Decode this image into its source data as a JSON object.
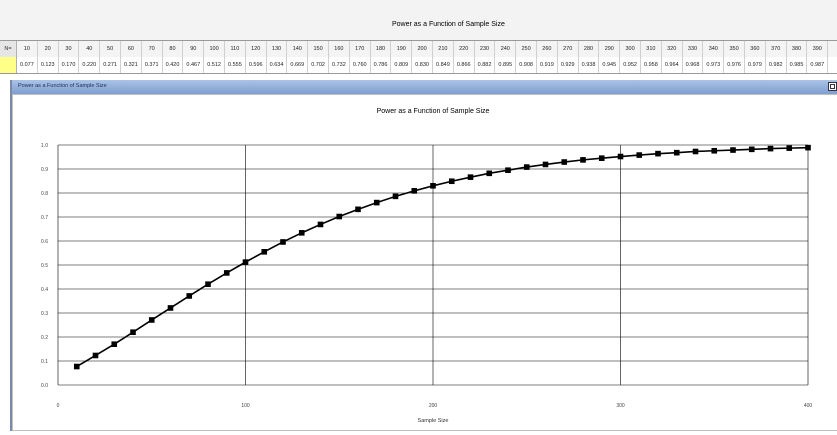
{
  "app": {
    "top_title": "Power as a Function of Sample Size",
    "window_title": "Power as a Function of Sample Size"
  },
  "table": {
    "n_label": "N=",
    "n_values": [
      "10",
      "20",
      "30",
      "40",
      "50",
      "60",
      "70",
      "80",
      "90",
      "100",
      "110",
      "120",
      "130",
      "140",
      "150",
      "160",
      "170",
      "180",
      "190",
      "200",
      "210",
      "220",
      "230",
      "240",
      "250",
      "260",
      "270",
      "280",
      "290",
      "300",
      "310",
      "320",
      "330",
      "340",
      "350",
      "360",
      "370",
      "380",
      "390"
    ],
    "power_values": [
      "0.077",
      "0.123",
      "0.170",
      "0.220",
      "0.271",
      "0.321",
      "0.371",
      "0.420",
      "0.467",
      "0.512",
      "0.555",
      "0.596",
      "0.634",
      "0.669",
      "0.702",
      "0.732",
      "0.760",
      "0.786",
      "0.809",
      "0.830",
      "0.849",
      "0.866",
      "0.882",
      "0.895",
      "0.908",
      "0.919",
      "0.929",
      "0.938",
      "0.945",
      "0.952",
      "0.958",
      "0.964",
      "0.968",
      "0.973",
      "0.976",
      "0.979",
      "0.982",
      "0.985",
      "0.987"
    ]
  },
  "chart_data": {
    "type": "line",
    "title": "Power as a Function of Sample Size",
    "xlabel": "Sample Size",
    "ylabel": "",
    "xlim": [
      0,
      400
    ],
    "ylim": [
      0,
      1.0
    ],
    "xticks": [
      "0",
      "100",
      "200",
      "300",
      "400"
    ],
    "yticks": [
      "0.0",
      "0.1",
      "0.2",
      "0.3",
      "0.4",
      "0.5",
      "0.6",
      "0.7",
      "0.8",
      "0.9",
      "1.0"
    ],
    "grid": true,
    "series": [
      {
        "color": "#000000",
        "x": [
          10,
          20,
          30,
          40,
          50,
          60,
          70,
          80,
          90,
          100,
          110,
          120,
          130,
          140,
          150,
          160,
          170,
          180,
          190,
          200,
          210,
          220,
          230,
          240,
          250,
          260,
          270,
          280,
          290,
          300,
          310,
          320,
          330,
          340,
          350,
          360,
          370,
          380,
          390,
          400
        ],
        "y": [
          0.077,
          0.123,
          0.17,
          0.22,
          0.271,
          0.321,
          0.371,
          0.42,
          0.467,
          0.512,
          0.555,
          0.596,
          0.634,
          0.669,
          0.702,
          0.732,
          0.76,
          0.786,
          0.809,
          0.83,
          0.849,
          0.866,
          0.882,
          0.895,
          0.908,
          0.919,
          0.929,
          0.938,
          0.945,
          0.952,
          0.958,
          0.964,
          0.968,
          0.973,
          0.976,
          0.979,
          0.982,
          0.985,
          0.987,
          0.989
        ]
      }
    ]
  }
}
